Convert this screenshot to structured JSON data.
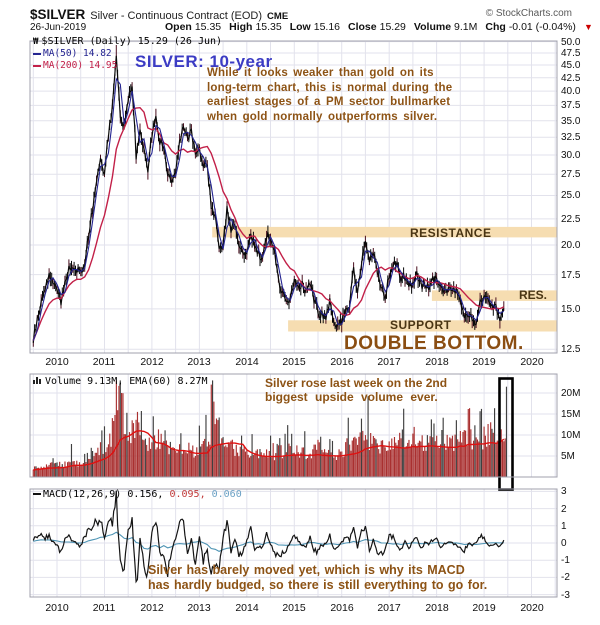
{
  "header": {
    "symbol": "$SILVER",
    "name": "Silver - Continuous Contract (EOD)",
    "exchange": "CME",
    "attribution": "© StockCharts.com",
    "date": "26-Jun-2019",
    "quote": [
      {
        "label": "Open",
        "value": "15.35"
      },
      {
        "label": "High",
        "value": "15.35"
      },
      {
        "label": "Low",
        "value": "15.16"
      },
      {
        "label": "Close",
        "value": "15.29"
      },
      {
        "label": "Volume",
        "value": "9.1M"
      },
      {
        "label": "Chg",
        "value": "-0.01 (-0.04%)",
        "direction": "down"
      }
    ]
  },
  "icons": {
    "sharpchart_glyph": "₩",
    "chg_down_glyph": "▼"
  },
  "main_panel": {
    "legend": {
      "title": "$SILVER (Daily) 15.29 (26 Jun)",
      "ma50": "MA(50) 14.82",
      "ma200": "MA(200) 14.95"
    },
    "title_annotation": "SILVER: 10-year",
    "paragraph": [
      "While it looks weaker than gold on its",
      "long-term chart, this is normal during the",
      "earliest stages of a PM sector bullmarket",
      "when gold normally outperforms silver."
    ],
    "labels": {
      "double_bottom": "DOUBLE BOTTOM."
    }
  },
  "volume_panel": {
    "legend": "Volume 9.13M, EMA(60) 8.27M",
    "annotation": [
      "Silver rose last week on the 2nd",
      "biggest  upside  volume  ever."
    ]
  },
  "macd_panel": {
    "legend_name": "MACD(12,26,9)",
    "v1": "0.156,",
    "v2": "0.095,",
    "v3": "0.060"
  },
  "x_axis_years": [
    "2010",
    "2011",
    "2012",
    "2013",
    "2014",
    "2015",
    "2016",
    "2017",
    "2018",
    "2019",
    "2020"
  ],
  "colors": {
    "band_tan": "#f6ddb1",
    "annotation_brown": "#8d5315",
    "zone_label_brown": "#4a3513",
    "title_blue": "#3b3bc4",
    "price": "#0a0a0a",
    "ma50": "#242490",
    "ma200": "#c22048",
    "volume_bar": "#a93030",
    "volume_spike": "#3f3f3f",
    "volume_ema": "#e01010",
    "macd_line": "#141414",
    "macd_signal": "#4e94b4",
    "grid": "#e2e2ec",
    "panel_border": "#a0a0ac",
    "chg_arrow": "#cc0000"
  },
  "chart_data": [
    {
      "type": "line",
      "panel": "price",
      "title": "$SILVER (Daily) close, monthly approximation, Jul 2009 - Jun 2019",
      "scale": "log",
      "x_start": 2009.5,
      "x_step_months": 1,
      "ylim": [
        12.5,
        50.0
      ],
      "y_ticks": [
        "50.0",
        "47.5",
        "45.0",
        "42.5",
        "40.0",
        "37.5",
        "35.0",
        "32.5",
        "30.0",
        "27.5",
        "25.0",
        "22.5",
        "20.0",
        "17.5",
        "15.0",
        "12.5"
      ],
      "series": [
        {
          "name": "$SILVER close",
          "color": "#0a0a0a",
          "values": [
            13.0,
            14.2,
            15.5,
            16.5,
            17.5,
            17.0,
            16.5,
            15.5,
            16.8,
            18.0,
            17.8,
            18.0,
            17.5,
            18.5,
            21.0,
            23.5,
            27.0,
            30.0,
            27.5,
            33.0,
            37.0,
            47.5,
            35.0,
            34.0,
            39.0,
            41.0,
            30.0,
            33.5,
            31.0,
            27.5,
            33.0,
            35.5,
            32.0,
            31.0,
            27.5,
            27.0,
            27.5,
            31.5,
            34.5,
            32.0,
            33.5,
            30.0,
            31.0,
            28.5,
            28.3,
            24.0,
            22.5,
            19.5,
            19.8,
            23.5,
            21.5,
            21.8,
            20.0,
            19.5,
            19.2,
            21.2,
            19.8,
            19.2,
            18.7,
            21.0,
            20.5,
            19.4,
            17.0,
            16.1,
            15.5,
            15.7,
            17.2,
            16.6,
            16.7,
            16.1,
            16.7,
            15.6,
            14.8,
            14.6,
            14.5,
            15.5,
            14.2,
            13.8,
            14.2,
            14.9,
            15.4,
            17.8,
            16.0,
            18.6,
            20.3,
            18.6,
            19.2,
            17.8,
            16.5,
            15.9,
            17.5,
            18.3,
            18.2,
            17.2,
            17.3,
            16.6,
            16.8,
            17.6,
            16.7,
            16.7,
            16.4,
            17.0,
            17.2,
            16.4,
            16.3,
            16.4,
            16.4,
            16.1,
            15.5,
            14.5,
            14.7,
            14.3,
            14.2,
            15.5,
            16.0,
            15.6,
            15.1,
            15.0,
            14.4,
            15.29
          ]
        }
      ],
      "overlays": [
        {
          "name": "MA(50)",
          "current": 14.82,
          "color": "#242490",
          "window": 2
        },
        {
          "name": "MA(200)",
          "current": 14.95,
          "color": "#c22048",
          "window": 8
        }
      ],
      "bands": [
        {
          "label": "RESISTANCE",
          "price_range": [
            20.7,
            21.7
          ],
          "x_from": 2013.27
        },
        {
          "label": "RES.",
          "price_range": [
            15.55,
            16.3
          ],
          "x_from": 2017.9
        },
        {
          "label": "SUPPORT",
          "price_range": [
            13.55,
            14.25
          ],
          "x_from": 2014.87
        }
      ]
    },
    {
      "type": "bar",
      "panel": "volume",
      "name": "Volume (millions)",
      "ylim": [
        0,
        24
      ],
      "y_ticks": [
        "20M",
        "15M",
        "10M",
        "5M"
      ],
      "highlight_last_bar": true,
      "values": [
        2.0,
        2.2,
        2.5,
        2.8,
        3.0,
        2.6,
        3.0,
        2.8,
        3.2,
        4.5,
        4.0,
        3.5,
        3.0,
        3.5,
        4.5,
        5.5,
        6.5,
        7.0,
        8.0,
        9.5,
        12.0,
        19.0,
        21.5,
        10.0,
        9.0,
        12.5,
        14.0,
        9.0,
        8.0,
        7.5,
        8.0,
        9.0,
        8.5,
        7.0,
        7.5,
        6.5,
        6.0,
        6.5,
        7.5,
        6.5,
        6.0,
        6.5,
        6.5,
        8.0,
        7.0,
        19.5,
        12.0,
        10.0,
        8.0,
        7.5,
        7.0,
        6.5,
        6.0,
        6.0,
        5.5,
        6.0,
        5.5,
        5.0,
        5.5,
        6.0,
        6.5,
        5.5,
        6.5,
        6.0,
        7.5,
        6.0,
        6.0,
        5.5,
        6.0,
        5.5,
        6.0,
        6.5,
        7.5,
        6.0,
        5.5,
        5.0,
        5.5,
        5.5,
        6.0,
        7.5,
        8.0,
        9.0,
        8.5,
        9.5,
        11.0,
        8.5,
        8.0,
        7.5,
        9.0,
        7.0,
        7.5,
        8.0,
        8.5,
        9.5,
        8.0,
        9.0,
        10.5,
        8.0,
        8.5,
        7.0,
        9.5,
        8.5,
        8.5,
        7.5,
        8.0,
        9.5,
        8.0,
        8.5,
        10.0,
        9.0,
        13.0,
        8.5,
        8.0,
        9.0,
        9.5,
        10.5,
        9.0,
        8.5,
        11.0,
        21.5
      ]
    },
    {
      "type": "line",
      "panel": "macd",
      "name": "MACD(12,26,9)",
      "ylim": [
        -3,
        3
      ],
      "y_ticks": [
        "3",
        "2",
        "1",
        "0",
        "-1",
        "-2",
        "-3"
      ],
      "values": [
        0.2,
        0.4,
        0.5,
        0.3,
        0.4,
        0.1,
        -0.2,
        -0.5,
        0.2,
        0.5,
        0.1,
        0.0,
        -0.2,
        0.4,
        0.8,
        1.0,
        1.2,
        1.4,
        0.3,
        1.0,
        1.2,
        2.6,
        -1.2,
        -1.5,
        0.8,
        1.5,
        -2.9,
        0.3,
        -1.4,
        -1.8,
        0.8,
        1.5,
        -0.5,
        -1.0,
        -1.6,
        -0.4,
        0.3,
        1.2,
        1.3,
        -0.6,
        0.2,
        -1.3,
        0.4,
        -1.0,
        -0.3,
        -1.9,
        -1.2,
        -1.5,
        0.2,
        1.4,
        -0.6,
        0.3,
        -0.7,
        -0.5,
        0.1,
        0.8,
        -0.4,
        -0.2,
        -0.3,
        0.7,
        -0.1,
        -0.5,
        -0.8,
        -0.5,
        -0.4,
        0.1,
        0.5,
        0.1,
        -0.1,
        -0.2,
        0.3,
        -0.4,
        -0.5,
        -0.1,
        -0.1,
        0.4,
        -0.4,
        -0.2,
        0.1,
        0.3,
        0.2,
        0.8,
        -0.3,
        0.8,
        0.9,
        -0.4,
        0.2,
        -0.5,
        -0.6,
        -0.4,
        0.4,
        0.4,
        -0.1,
        -0.4,
        0.1,
        -0.3,
        0.1,
        0.3,
        -0.3,
        0.0,
        -0.1,
        0.2,
        0.2,
        -0.2,
        -0.1,
        0.1,
        0.0,
        -0.1,
        -0.4,
        -0.5,
        0.0,
        -0.2,
        0.0,
        0.4,
        0.3,
        -0.1,
        -0.2,
        0.0,
        -0.3,
        0.156
      ]
    }
  ]
}
